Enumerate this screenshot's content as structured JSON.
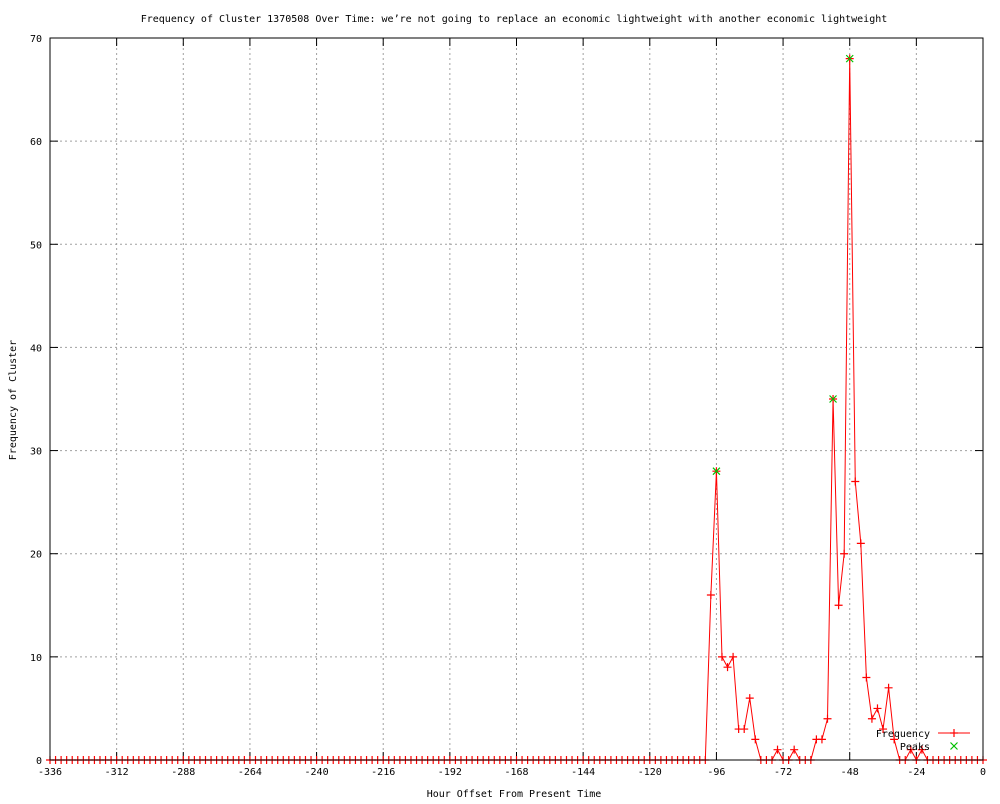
{
  "chart_data": {
    "type": "line",
    "title": "Frequency of Cluster 1370508 Over Time: we’re not going to replace an economic lightweight with another economic lightweight",
    "xlabel": "Hour Offset From Present Time",
    "ylabel": "Frequency of Cluster",
    "xlim": [
      -336,
      0
    ],
    "ylim": [
      0,
      70
    ],
    "xticks": [
      -336,
      -312,
      -288,
      -264,
      -240,
      -216,
      -192,
      -168,
      -144,
      -120,
      -96,
      -72,
      -48,
      -24,
      0
    ],
    "yticks": [
      0,
      10,
      20,
      30,
      40,
      50,
      60,
      70
    ],
    "grid": true,
    "legend_position": "bottom-right",
    "series": [
      {
        "name": "Frequency",
        "color": "#ff0000",
        "marker": "plus",
        "x": [
          -336,
          -334,
          -332,
          -330,
          -328,
          -326,
          -324,
          -322,
          -320,
          -318,
          -316,
          -314,
          -312,
          -310,
          -308,
          -306,
          -304,
          -302,
          -300,
          -298,
          -296,
          -294,
          -292,
          -290,
          -288,
          -286,
          -284,
          -282,
          -280,
          -278,
          -276,
          -274,
          -272,
          -270,
          -268,
          -266,
          -264,
          -262,
          -260,
          -258,
          -256,
          -254,
          -252,
          -250,
          -248,
          -246,
          -244,
          -242,
          -240,
          -238,
          -236,
          -234,
          -232,
          -230,
          -228,
          -226,
          -224,
          -222,
          -220,
          -218,
          -216,
          -214,
          -212,
          -210,
          -208,
          -206,
          -204,
          -202,
          -200,
          -198,
          -196,
          -194,
          -192,
          -190,
          -188,
          -186,
          -184,
          -182,
          -180,
          -178,
          -176,
          -174,
          -172,
          -170,
          -168,
          -166,
          -164,
          -162,
          -160,
          -158,
          -156,
          -154,
          -152,
          -150,
          -148,
          -146,
          -144,
          -142,
          -140,
          -138,
          -136,
          -134,
          -132,
          -130,
          -128,
          -126,
          -124,
          -122,
          -120,
          -118,
          -116,
          -114,
          -112,
          -110,
          -108,
          -106,
          -104,
          -102,
          -100,
          -98,
          -96,
          -94,
          -92,
          -90,
          -88,
          -86,
          -84,
          -82,
          -80,
          -78,
          -76,
          -74,
          -72,
          -70,
          -68,
          -66,
          -64,
          -62,
          -60,
          -58,
          -56,
          -54,
          -52,
          -50,
          -48,
          -46,
          -44,
          -42,
          -40,
          -38,
          -36,
          -34,
          -32,
          -30,
          -28,
          -26,
          -24,
          -22,
          -20,
          -18,
          -16,
          -14,
          -12,
          -10,
          -8,
          -6,
          -4,
          -2,
          0
        ],
        "y": [
          0,
          0,
          0,
          0,
          0,
          0,
          0,
          0,
          0,
          0,
          0,
          0,
          0,
          0,
          0,
          0,
          0,
          0,
          0,
          0,
          0,
          0,
          0,
          0,
          0,
          0,
          0,
          0,
          0,
          0,
          0,
          0,
          0,
          0,
          0,
          0,
          0,
          0,
          0,
          0,
          0,
          0,
          0,
          0,
          0,
          0,
          0,
          0,
          0,
          0,
          0,
          0,
          0,
          0,
          0,
          0,
          0,
          0,
          0,
          0,
          0,
          0,
          0,
          0,
          0,
          0,
          0,
          0,
          0,
          0,
          0,
          0,
          0,
          0,
          0,
          0,
          0,
          0,
          0,
          0,
          0,
          0,
          0,
          0,
          0,
          0,
          0,
          0,
          0,
          0,
          0,
          0,
          0,
          0,
          0,
          0,
          0,
          0,
          0,
          0,
          0,
          0,
          0,
          0,
          0,
          0,
          0,
          0,
          0,
          0,
          0,
          0,
          0,
          0,
          0,
          0,
          0,
          0,
          0,
          16,
          28,
          10,
          9,
          10,
          3,
          3,
          6,
          2,
          0,
          0,
          0,
          1,
          0,
          0,
          1,
          0,
          0,
          0,
          2,
          2,
          4,
          35,
          15,
          20,
          68,
          27,
          21,
          8,
          4,
          5,
          3,
          7,
          2,
          0,
          0,
          1,
          0,
          1,
          0,
          0,
          0,
          0,
          0,
          0,
          0,
          0,
          0,
          0,
          0
        ]
      },
      {
        "name": "Peaks",
        "color": "#00c000",
        "marker": "x",
        "x": [
          -96,
          -54,
          -48
        ],
        "y": [
          28,
          35,
          68
        ]
      }
    ]
  }
}
